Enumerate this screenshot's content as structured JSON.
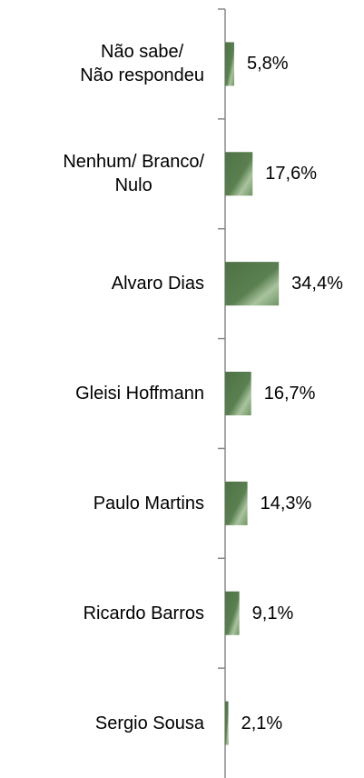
{
  "chart_data": {
    "type": "bar",
    "orientation": "horizontal",
    "categories": [
      "Não sabe/\nNão respondeu",
      "Nenhum/ Branco/\nNulo",
      "Alvaro Dias",
      "Gleisi Hoffmann",
      "Paulo Martins",
      "Ricardo Barros",
      "Sergio Sousa"
    ],
    "values": [
      5.8,
      17.6,
      34.4,
      16.7,
      14.3,
      9.1,
      2.1
    ],
    "value_labels": [
      "5,8%",
      "17,6%",
      "34,4%",
      "16,7%",
      "14,3%",
      "9,1%",
      "2,1%"
    ],
    "color": "#4e7245"
  }
}
